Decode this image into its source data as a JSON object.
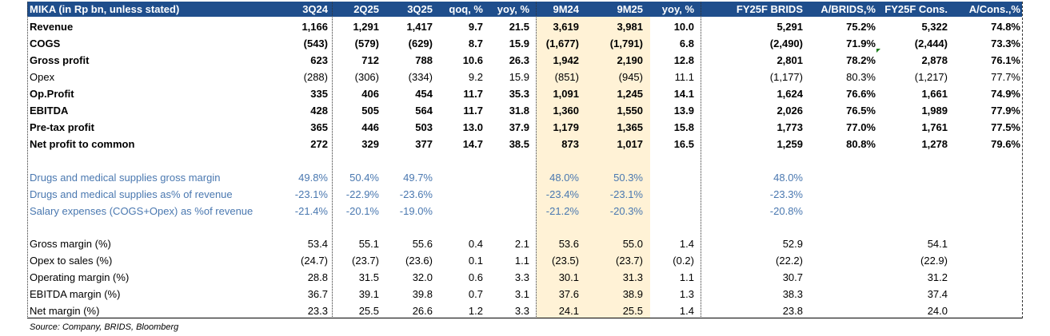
{
  "table": {
    "title": "MIKA (in Rp bn, unless stated)",
    "columns": [
      "3Q24",
      "2Q25",
      "3Q25",
      "qoq, %",
      "yoy, %",
      "9M24",
      "9M25",
      "yoy, %",
      "FY25F BRIDS",
      "A/BRIDS,%",
      "FY25F Cons.",
      "A/Cons.,%"
    ],
    "rows": [
      {
        "label": "Revenue",
        "style": "bold",
        "values": [
          "1,166",
          "1,291",
          "1,417",
          "9.7",
          "21.5",
          "3,619",
          "3,981",
          "10.0",
          "5,291",
          "75.2%",
          "5,322",
          "74.8%"
        ]
      },
      {
        "label": "COGS",
        "style": "bold",
        "values": [
          "(543)",
          "(579)",
          "(629)",
          "8.7",
          "15.9",
          "(1,677)",
          "(1,791)",
          "6.8",
          "(2,490)",
          "71.9%",
          "(2,444)",
          "73.3%"
        ]
      },
      {
        "label": "Gross profit",
        "style": "bold",
        "values": [
          "623",
          "712",
          "788",
          "10.6",
          "26.3",
          "1,942",
          "2,190",
          "12.8",
          "2,801",
          "78.2%",
          "2,878",
          "76.1%"
        ]
      },
      {
        "label": "Opex",
        "style": "normal",
        "values": [
          "(288)",
          "(306)",
          "(334)",
          "9.2",
          "15.9",
          "(851)",
          "(945)",
          "11.1",
          "(1,177)",
          "80.3%",
          "(1,217)",
          "77.7%"
        ]
      },
      {
        "label": "Op.Profit",
        "style": "bold",
        "values": [
          "335",
          "406",
          "454",
          "11.7",
          "35.3",
          "1,091",
          "1,245",
          "14.1",
          "1,624",
          "76.6%",
          "1,661",
          "74.9%"
        ]
      },
      {
        "label": "EBITDA",
        "style": "bold",
        "values": [
          "428",
          "505",
          "564",
          "11.7",
          "31.8",
          "1,360",
          "1,550",
          "13.9",
          "2,026",
          "76.5%",
          "1,989",
          "77.9%"
        ]
      },
      {
        "label": "Pre-tax profit",
        "style": "bold",
        "values": [
          "365",
          "446",
          "503",
          "13.0",
          "37.9",
          "1,179",
          "1,365",
          "15.8",
          "1,773",
          "77.0%",
          "1,761",
          "77.5%"
        ]
      },
      {
        "label": "Net profit to common",
        "style": "bold",
        "values": [
          "272",
          "329",
          "377",
          "14.7",
          "38.5",
          "873",
          "1,017",
          "16.5",
          "1,259",
          "80.8%",
          "1,278",
          "79.6%"
        ]
      },
      {
        "label": "Drugs and medical supplies gross margin",
        "style": "blue",
        "values": [
          "49.8%",
          "50.4%",
          "49.7%",
          "",
          "",
          "48.0%",
          "50.3%",
          "",
          "48.0%",
          "",
          "",
          ""
        ]
      },
      {
        "label": "Drugs and medical supplies as% of revenue",
        "style": "blue",
        "values": [
          "-23.1%",
          "-22.9%",
          "-23.6%",
          "",
          "",
          "-23.4%",
          "-23.1%",
          "",
          "-23.3%",
          "",
          "",
          ""
        ]
      },
      {
        "label": "Salary expenses (COGS+Opex) as %of revenue",
        "style": "blue",
        "values": [
          "-21.4%",
          "-20.1%",
          "-19.0%",
          "",
          "",
          "-21.2%",
          "-20.3%",
          "",
          "-20.8%",
          "",
          "",
          ""
        ]
      },
      {
        "label": "Gross margin (%)",
        "style": "normal",
        "values": [
          "53.4",
          "55.1",
          "55.6",
          "0.4",
          "2.1",
          "53.6",
          "55.0",
          "1.4",
          "52.9",
          "",
          "54.1",
          ""
        ]
      },
      {
        "label": "Opex to sales (%)",
        "style": "normal",
        "values": [
          "(24.7)",
          "(23.7)",
          "(23.6)",
          "0.1",
          "1.1",
          "(23.5)",
          "(23.7)",
          "(0.2)",
          "(22.2)",
          "",
          "(22.9)",
          ""
        ]
      },
      {
        "label": "Operating margin (%)",
        "style": "normal",
        "values": [
          "28.8",
          "31.5",
          "32.0",
          "0.6",
          "3.3",
          "30.1",
          "31.3",
          "1.1",
          "30.7",
          "",
          "31.2",
          ""
        ]
      },
      {
        "label": "EBITDA margin (%)",
        "style": "normal",
        "values": [
          "36.7",
          "39.1",
          "39.8",
          "0.7",
          "3.1",
          "37.6",
          "38.9",
          "1.3",
          "38.3",
          "",
          "37.4",
          ""
        ]
      },
      {
        "label": "Net margin (%)",
        "style": "normal",
        "values": [
          "23.3",
          "25.5",
          "26.6",
          "1.2",
          "3.3",
          "24.1",
          "25.5",
          "1.4",
          "23.8",
          "",
          "24.0",
          ""
        ]
      }
    ]
  },
  "source": "Source: Company, BRIDS, Bloomberg",
  "colors": {
    "header_bg": "#1f4e8c",
    "highlight": "#fff2d6",
    "blue_text": "#4a78b0"
  }
}
